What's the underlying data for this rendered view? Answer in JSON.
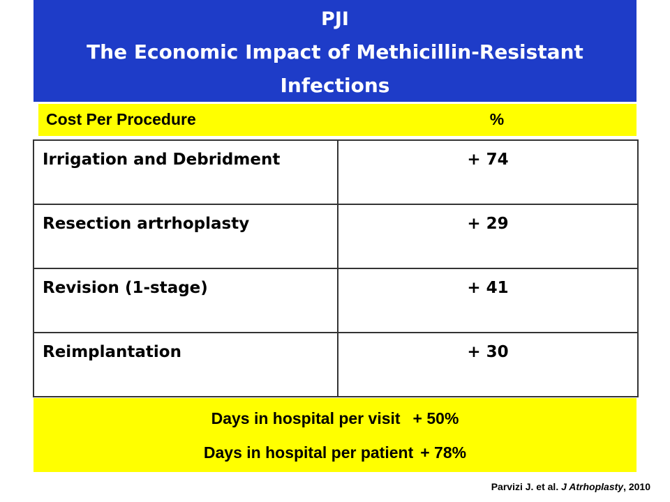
{
  "title": {
    "line1": "PJI",
    "line2": "The Economic Impact of Methicillin-Resistant",
    "line3": "Infections"
  },
  "header": {
    "label": "Cost Per Procedure",
    "unit": "%"
  },
  "table": {
    "rows": [
      {
        "procedure": "Irrigation and Debridment",
        "value": "+ 74"
      },
      {
        "procedure": "Resection artrhoplasty",
        "value": "+ 29"
      },
      {
        "procedure": "Revision (1-stage)",
        "value": "+ 41"
      },
      {
        "procedure": "Reimplantation",
        "value": "+ 30"
      }
    ]
  },
  "summary": {
    "visit_label": "Days in hospital per visit",
    "visit_value": "+ 50%",
    "patient_label": "Days in hospital per patient",
    "patient_value": "+ 78%"
  },
  "citation": {
    "authors": "Parvizi J. et al.",
    "journal": "J Atrhoplasty",
    "year": ", 2010"
  },
  "colors": {
    "title_bg": "#1e3cc8",
    "highlight": "#ffff00"
  }
}
